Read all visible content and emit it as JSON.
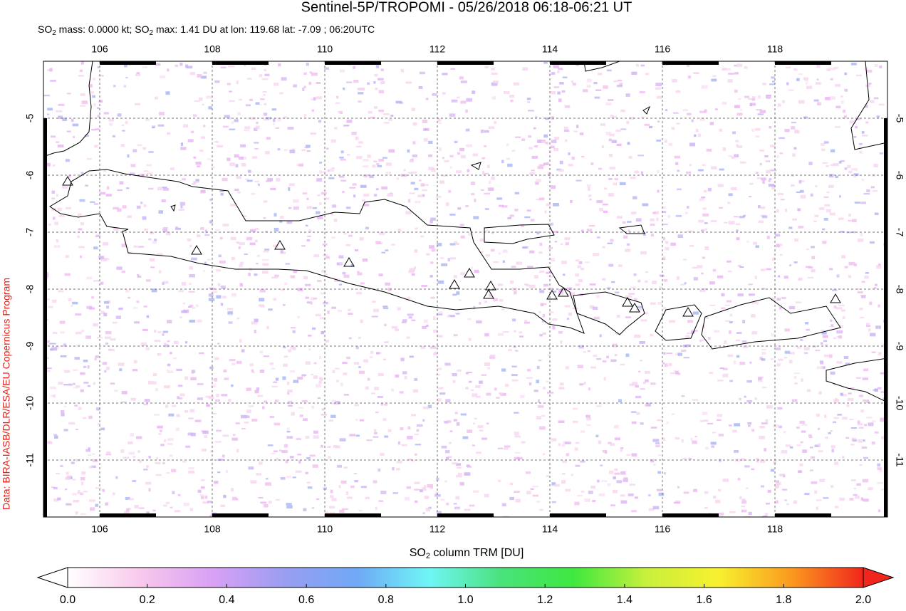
{
  "title": "Sentinel-5P/TROPOMI - 05/26/2018 06:18-06:21 UT",
  "subtitle": [
    "SO",
    "2",
    " mass: 0.0000 kt; SO",
    "2",
    " max: 1.41 DU at lon: 119.68 lat: -7.09 ; 06:20UTC"
  ],
  "credit": "Data: BIRA-IASB/DLR/ESA/EU Copernicus Program",
  "map": {
    "xlim": [
      105,
      120
    ],
    "ylim": [
      -12,
      -4
    ],
    "xticks": [
      106,
      108,
      110,
      112,
      114,
      116,
      118
    ],
    "yticks": [
      -5,
      -6,
      -7,
      -8,
      -9,
      -10,
      -11
    ]
  },
  "colorbar": {
    "label": [
      "SO",
      "2",
      " column TRM [DU]"
    ],
    "lim": [
      0,
      2
    ],
    "ticks": [
      {
        "value": 0,
        "label": "0.0"
      },
      0.2,
      0.4,
      0.6,
      0.8,
      {
        "value": 1,
        "label": "1.0"
      },
      1.2,
      1.4,
      1.6,
      1.8,
      {
        "value": 2,
        "label": "2.0"
      }
    ],
    "colors": [
      "#ffffff",
      "#f9c8ec",
      "#d9a0f5",
      "#9a9ef2",
      "#6fa8f5",
      "#6ff6f6",
      "#49e27b",
      "#3fe83f",
      "#c8f03c",
      "#f8f12f",
      "#fb9a1f",
      "#f0261c"
    ]
  }
}
